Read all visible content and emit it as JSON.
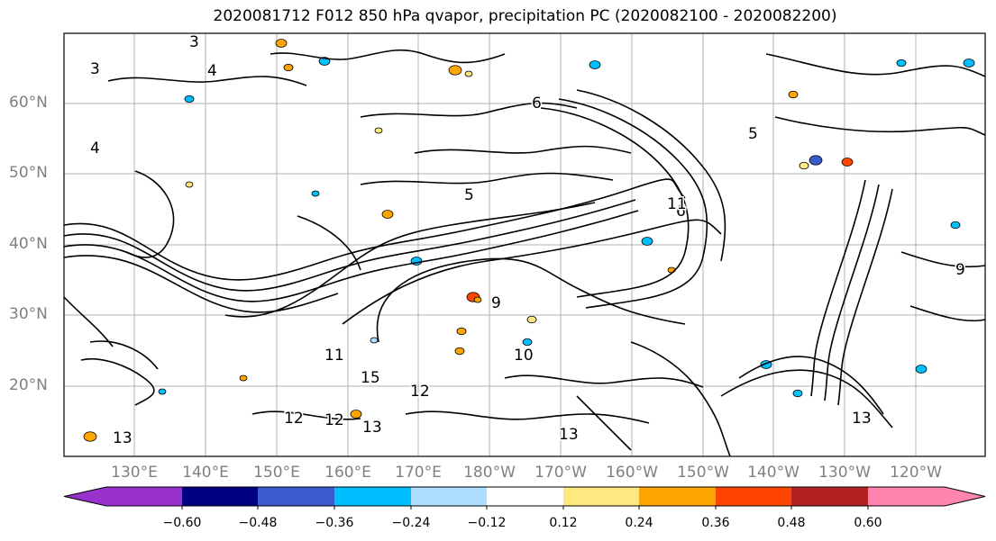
{
  "title": "2020081712 F012 850 hPa qvapor, precipitation PC (2020082100 - 2020082200)",
  "map": {
    "lat_labels": [
      "60°N",
      "50°N",
      "40°N",
      "30°N",
      "20°N"
    ],
    "lon_labels": [
      "130°E",
      "140°E",
      "150°E",
      "160°E",
      "170°E",
      "180°W",
      "170°W",
      "160°W",
      "150°W",
      "140°W",
      "130°W",
      "120°W"
    ],
    "contour_labels": [
      "3",
      "3",
      "4",
      "4",
      "5",
      "5",
      "6",
      "6",
      "9",
      "9",
      "11",
      "12",
      "12",
      "13",
      "13",
      "13",
      "15",
      "11",
      "10",
      "12",
      "13"
    ]
  },
  "colorbar": {
    "ticks": [
      "−0.60",
      "−0.48",
      "−0.36",
      "−0.24",
      "−0.12",
      "0.12",
      "0.24",
      "0.36",
      "0.48",
      "0.60"
    ],
    "colors": [
      "#9932CC",
      "#000080",
      "#3A5BCB",
      "#00BFFF",
      "#ADDEFF",
      "#FFFFFF",
      "#FFE880",
      "#FFA500",
      "#FF4500",
      "#B22222",
      "#FF85B0"
    ],
    "extend": "both"
  }
}
